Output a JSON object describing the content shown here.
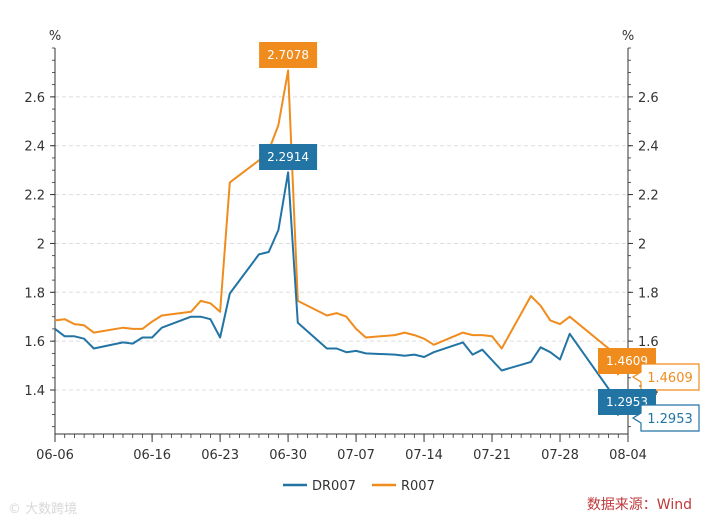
{
  "chart_data": {
    "type": "line",
    "y_unit_left": "%",
    "y_unit_right": "%",
    "ylim": [
      1.22,
      2.8
    ],
    "y_ticks": [
      1.4,
      1.6,
      1.8,
      2.0,
      2.2,
      2.4,
      2.6
    ],
    "y_tick_labels": [
      "1.4",
      "1.6",
      "1.8",
      "2",
      "2.2",
      "2.4",
      "2.6"
    ],
    "x_ticks": [
      "06-06",
      "06-16",
      "06-23",
      "06-30",
      "07-07",
      "07-14",
      "07-21",
      "07-28",
      "08-04"
    ],
    "grid": "horizontal dashed",
    "legend_position": "bottom",
    "series": [
      {
        "name": "DR007",
        "color": "#2274a5",
        "points": [
          [
            "06-06",
            1.65
          ],
          [
            "06-07",
            1.62
          ],
          [
            "06-08",
            1.62
          ],
          [
            "06-09",
            1.61
          ],
          [
            "06-10",
            1.57
          ],
          [
            "06-13",
            1.595
          ],
          [
            "06-14",
            1.59
          ],
          [
            "06-15",
            1.615
          ],
          [
            "06-16",
            1.615
          ],
          [
            "06-17",
            1.655
          ],
          [
            "06-20",
            1.7
          ],
          [
            "06-21",
            1.7
          ],
          [
            "06-22",
            1.69
          ],
          [
            "06-23",
            1.615
          ],
          [
            "06-24",
            1.795
          ],
          [
            "06-27",
            1.955
          ],
          [
            "06-28",
            1.965
          ],
          [
            "06-29",
            2.055
          ],
          [
            "06-30",
            2.2914
          ],
          [
            "07-01",
            1.675
          ],
          [
            "07-04",
            1.57
          ],
          [
            "07-05",
            1.57
          ],
          [
            "07-06",
            1.555
          ],
          [
            "07-07",
            1.56
          ],
          [
            "07-08",
            1.55
          ],
          [
            "07-11",
            1.545
          ],
          [
            "07-12",
            1.54
          ],
          [
            "07-13",
            1.545
          ],
          [
            "07-14",
            1.535
          ],
          [
            "07-15",
            1.555
          ],
          [
            "07-18",
            1.595
          ],
          [
            "07-19",
            1.545
          ],
          [
            "07-20",
            1.565
          ],
          [
            "07-22",
            1.48
          ],
          [
            "07-25",
            1.515
          ],
          [
            "07-26",
            1.575
          ],
          [
            "07-27",
            1.555
          ],
          [
            "07-28",
            1.525
          ],
          [
            "07-29",
            1.63
          ],
          [
            "08-02",
            1.405
          ],
          [
            "08-03",
            1.2953
          ]
        ]
      },
      {
        "name": "R007",
        "color": "#f08c1e",
        "points": [
          [
            "06-06",
            1.685
          ],
          [
            "06-07",
            1.69
          ],
          [
            "06-08",
            1.67
          ],
          [
            "06-09",
            1.665
          ],
          [
            "06-10",
            1.635
          ],
          [
            "06-13",
            1.655
          ],
          [
            "06-14",
            1.65
          ],
          [
            "06-15",
            1.65
          ],
          [
            "06-16",
            1.68
          ],
          [
            "06-17",
            1.705
          ],
          [
            "06-20",
            1.72
          ],
          [
            "06-21",
            1.765
          ],
          [
            "06-22",
            1.755
          ],
          [
            "06-23",
            1.72
          ],
          [
            "06-24",
            2.25
          ],
          [
            "06-27",
            2.34
          ],
          [
            "06-28",
            2.38
          ],
          [
            "06-29",
            2.485
          ],
          [
            "06-30",
            2.7078
          ],
          [
            "07-01",
            1.765
          ],
          [
            "07-04",
            1.705
          ],
          [
            "07-05",
            1.715
          ],
          [
            "07-06",
            1.7
          ],
          [
            "07-07",
            1.65
          ],
          [
            "07-08",
            1.615
          ],
          [
            "07-11",
            1.625
          ],
          [
            "07-12",
            1.635
          ],
          [
            "07-13",
            1.625
          ],
          [
            "07-14",
            1.61
          ],
          [
            "07-15",
            1.585
          ],
          [
            "07-18",
            1.635
          ],
          [
            "07-19",
            1.625
          ],
          [
            "07-20",
            1.625
          ],
          [
            "07-21",
            1.62
          ],
          [
            "07-22",
            1.57
          ],
          [
            "07-25",
            1.785
          ],
          [
            "07-26",
            1.745
          ],
          [
            "07-27",
            1.685
          ],
          [
            "07-28",
            1.67
          ],
          [
            "07-29",
            1.7
          ],
          [
            "08-02",
            1.57
          ],
          [
            "08-03",
            1.4609
          ]
        ]
      }
    ],
    "callouts": {
      "r007_peak": "2.7078",
      "dr007_peak": "2.2914",
      "r007_last": "1.4609",
      "dr007_last": "1.2953"
    }
  },
  "footer": {
    "source": "数据来源：Wind",
    "watermark": "© 大数跨境"
  },
  "colors": {
    "dr007": "#2274a5",
    "r007": "#f08c1e",
    "grid": "#dddddd",
    "axis": "#333333",
    "source_text": "#c0393b"
  }
}
